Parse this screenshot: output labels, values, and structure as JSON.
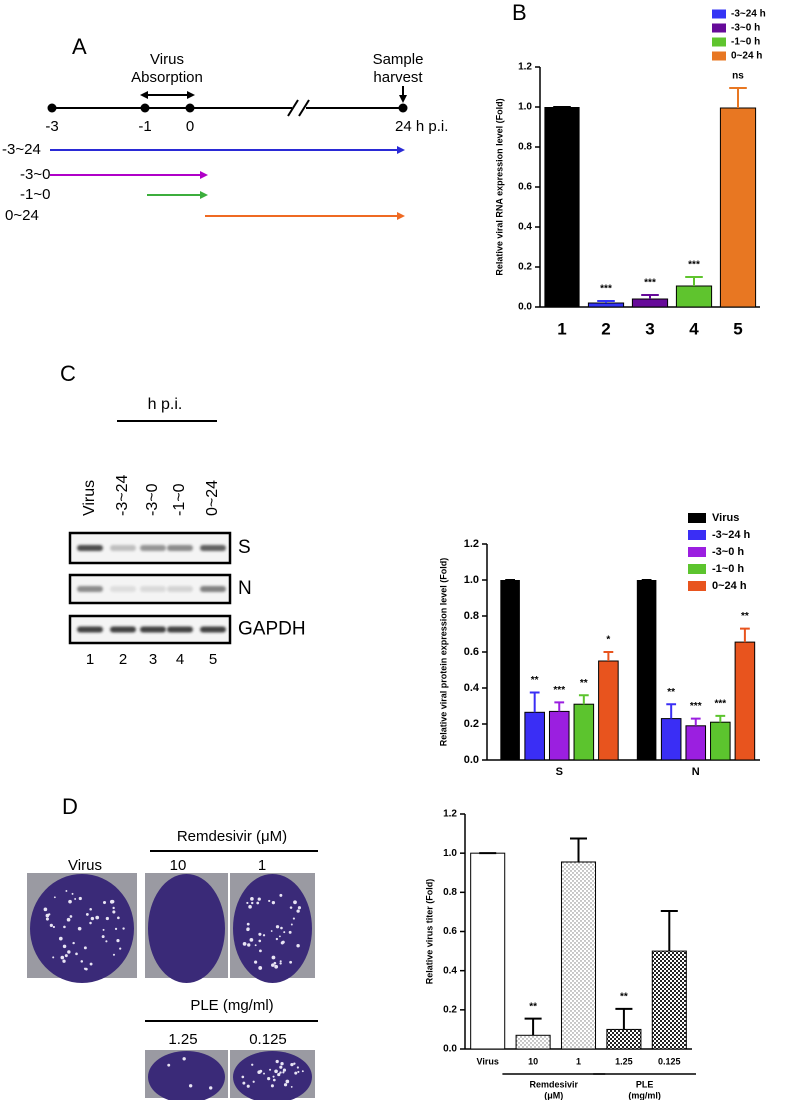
{
  "panel_a": {
    "label": "A",
    "absorption_label": [
      "Virus",
      "Absorption"
    ],
    "harvest_label": [
      "Sample",
      "harvest"
    ],
    "timepoints": [
      "-3",
      "-1",
      "0",
      "24 h p.i."
    ],
    "treatments": [
      "-3~24",
      "-3~0",
      "-1~0",
      "0~24"
    ],
    "colors": [
      "#2a2ad6",
      "#b000c8",
      "#3cae3c",
      "#ef6a23"
    ]
  },
  "panel_c_blot": {
    "label": "C",
    "header": "h p.i.",
    "lanes": [
      "Virus",
      "-3~24",
      "-3~0",
      "-1~0",
      "0~24"
    ],
    "rows": [
      "S",
      "N",
      "GAPDH"
    ],
    "lane_numbers": [
      "1",
      "2",
      "3",
      "4",
      "5"
    ]
  },
  "panel_d_plates": {
    "label": "D",
    "virus_label": "Virus",
    "remdesivir_header": "Remdesivir (μM)",
    "remdesivir_doses": [
      "10",
      "1"
    ],
    "ple_header": "PLE (mg/ml)",
    "ple_doses": [
      "1.25",
      "0.125"
    ]
  },
  "chart_data": [
    {
      "type": "bar",
      "panel_label": "B",
      "y_label": "Relative viral RNA expression level (Fold)",
      "categories": [
        "1",
        "2",
        "3",
        "4",
        "5"
      ],
      "values": [
        1.0,
        0.02,
        0.04,
        0.105,
        0.995
      ],
      "errors": [
        0,
        0.01,
        0.02,
        0.045,
        0.1
      ],
      "colors": [
        "#000000",
        "#3434f5",
        "#660a99",
        "#5fc42e",
        "#e87722"
      ],
      "significance": [
        null,
        "***",
        "***",
        "***",
        "ns"
      ],
      "legend": [
        {
          "name": "-3~24 h",
          "color": "#3434f5"
        },
        {
          "name": "-3~0 h",
          "color": "#660a99"
        },
        {
          "name": "-1~0 h",
          "color": "#5fc42e"
        },
        {
          "name": "0~24 h",
          "color": "#e87722"
        }
      ],
      "ylim": [
        0,
        1.2
      ],
      "yticks": [
        {
          "value": 0,
          "label": "0.0"
        },
        0.2,
        0.4,
        0.6,
        0.8,
        {
          "value": 1,
          "label": "1.0"
        },
        1.2
      ]
    },
    {
      "type": "bar",
      "y_label": "Relative viral protein expression level (Fold)",
      "categories": [
        "S",
        "N"
      ],
      "series": [
        {
          "name": "Virus",
          "color": "#000000",
          "values": [
            1.0,
            1.0
          ],
          "errors": [
            0,
            0
          ],
          "significance": [
            null,
            null
          ]
        },
        {
          "name": "-3~24 h",
          "color": "#3a2ef5",
          "values": [
            0.265,
            0.23
          ],
          "errors": [
            0.11,
            0.08
          ],
          "significance": [
            "**",
            "**"
          ]
        },
        {
          "name": "-3~0 h",
          "color": "#9b1fe0",
          "values": [
            0.27,
            0.19
          ],
          "errors": [
            0.05,
            0.04
          ],
          "significance": [
            "***",
            "***"
          ]
        },
        {
          "name": "-1~0 h",
          "color": "#5cc42e",
          "values": [
            0.31,
            0.21
          ],
          "errors": [
            0.05,
            0.035
          ],
          "significance": [
            "**",
            "***"
          ]
        },
        {
          "name": "0~24 h",
          "color": "#e8541e",
          "values": [
            0.55,
            0.655
          ],
          "errors": [
            0.05,
            0.075
          ],
          "significance": [
            "*",
            "**"
          ]
        }
      ],
      "ylim": [
        0,
        1.2
      ],
      "yticks": [
        {
          "value": 0,
          "label": "0.0"
        },
        0.2,
        0.4,
        0.6,
        0.8,
        {
          "value": 1,
          "label": "1.0"
        },
        1.2
      ]
    },
    {
      "type": "bar",
      "y_label": "Relative virus titer (Fold)",
      "categories": [
        "Virus",
        "10",
        "1",
        "1.25",
        "0.125"
      ],
      "values": [
        1.0,
        0.07,
        0.955,
        0.1,
        0.5
      ],
      "errors": [
        0,
        0.085,
        0.12,
        0.105,
        0.205
      ],
      "patterns": [
        "none",
        "dots",
        "dots",
        "checker",
        "checker"
      ],
      "significance": [
        null,
        "**",
        null,
        "**",
        null
      ],
      "group_labels": [
        [
          "Remdesivir",
          "(μM)"
        ],
        [
          "PLE",
          "(mg/ml)"
        ]
      ],
      "ylim": [
        0,
        1.2
      ],
      "yticks": [
        {
          "value": 0,
          "label": "0.0"
        },
        0.2,
        0.4,
        0.6,
        0.8,
        {
          "value": 1,
          "label": "1.0"
        },
        1.2
      ]
    }
  ]
}
